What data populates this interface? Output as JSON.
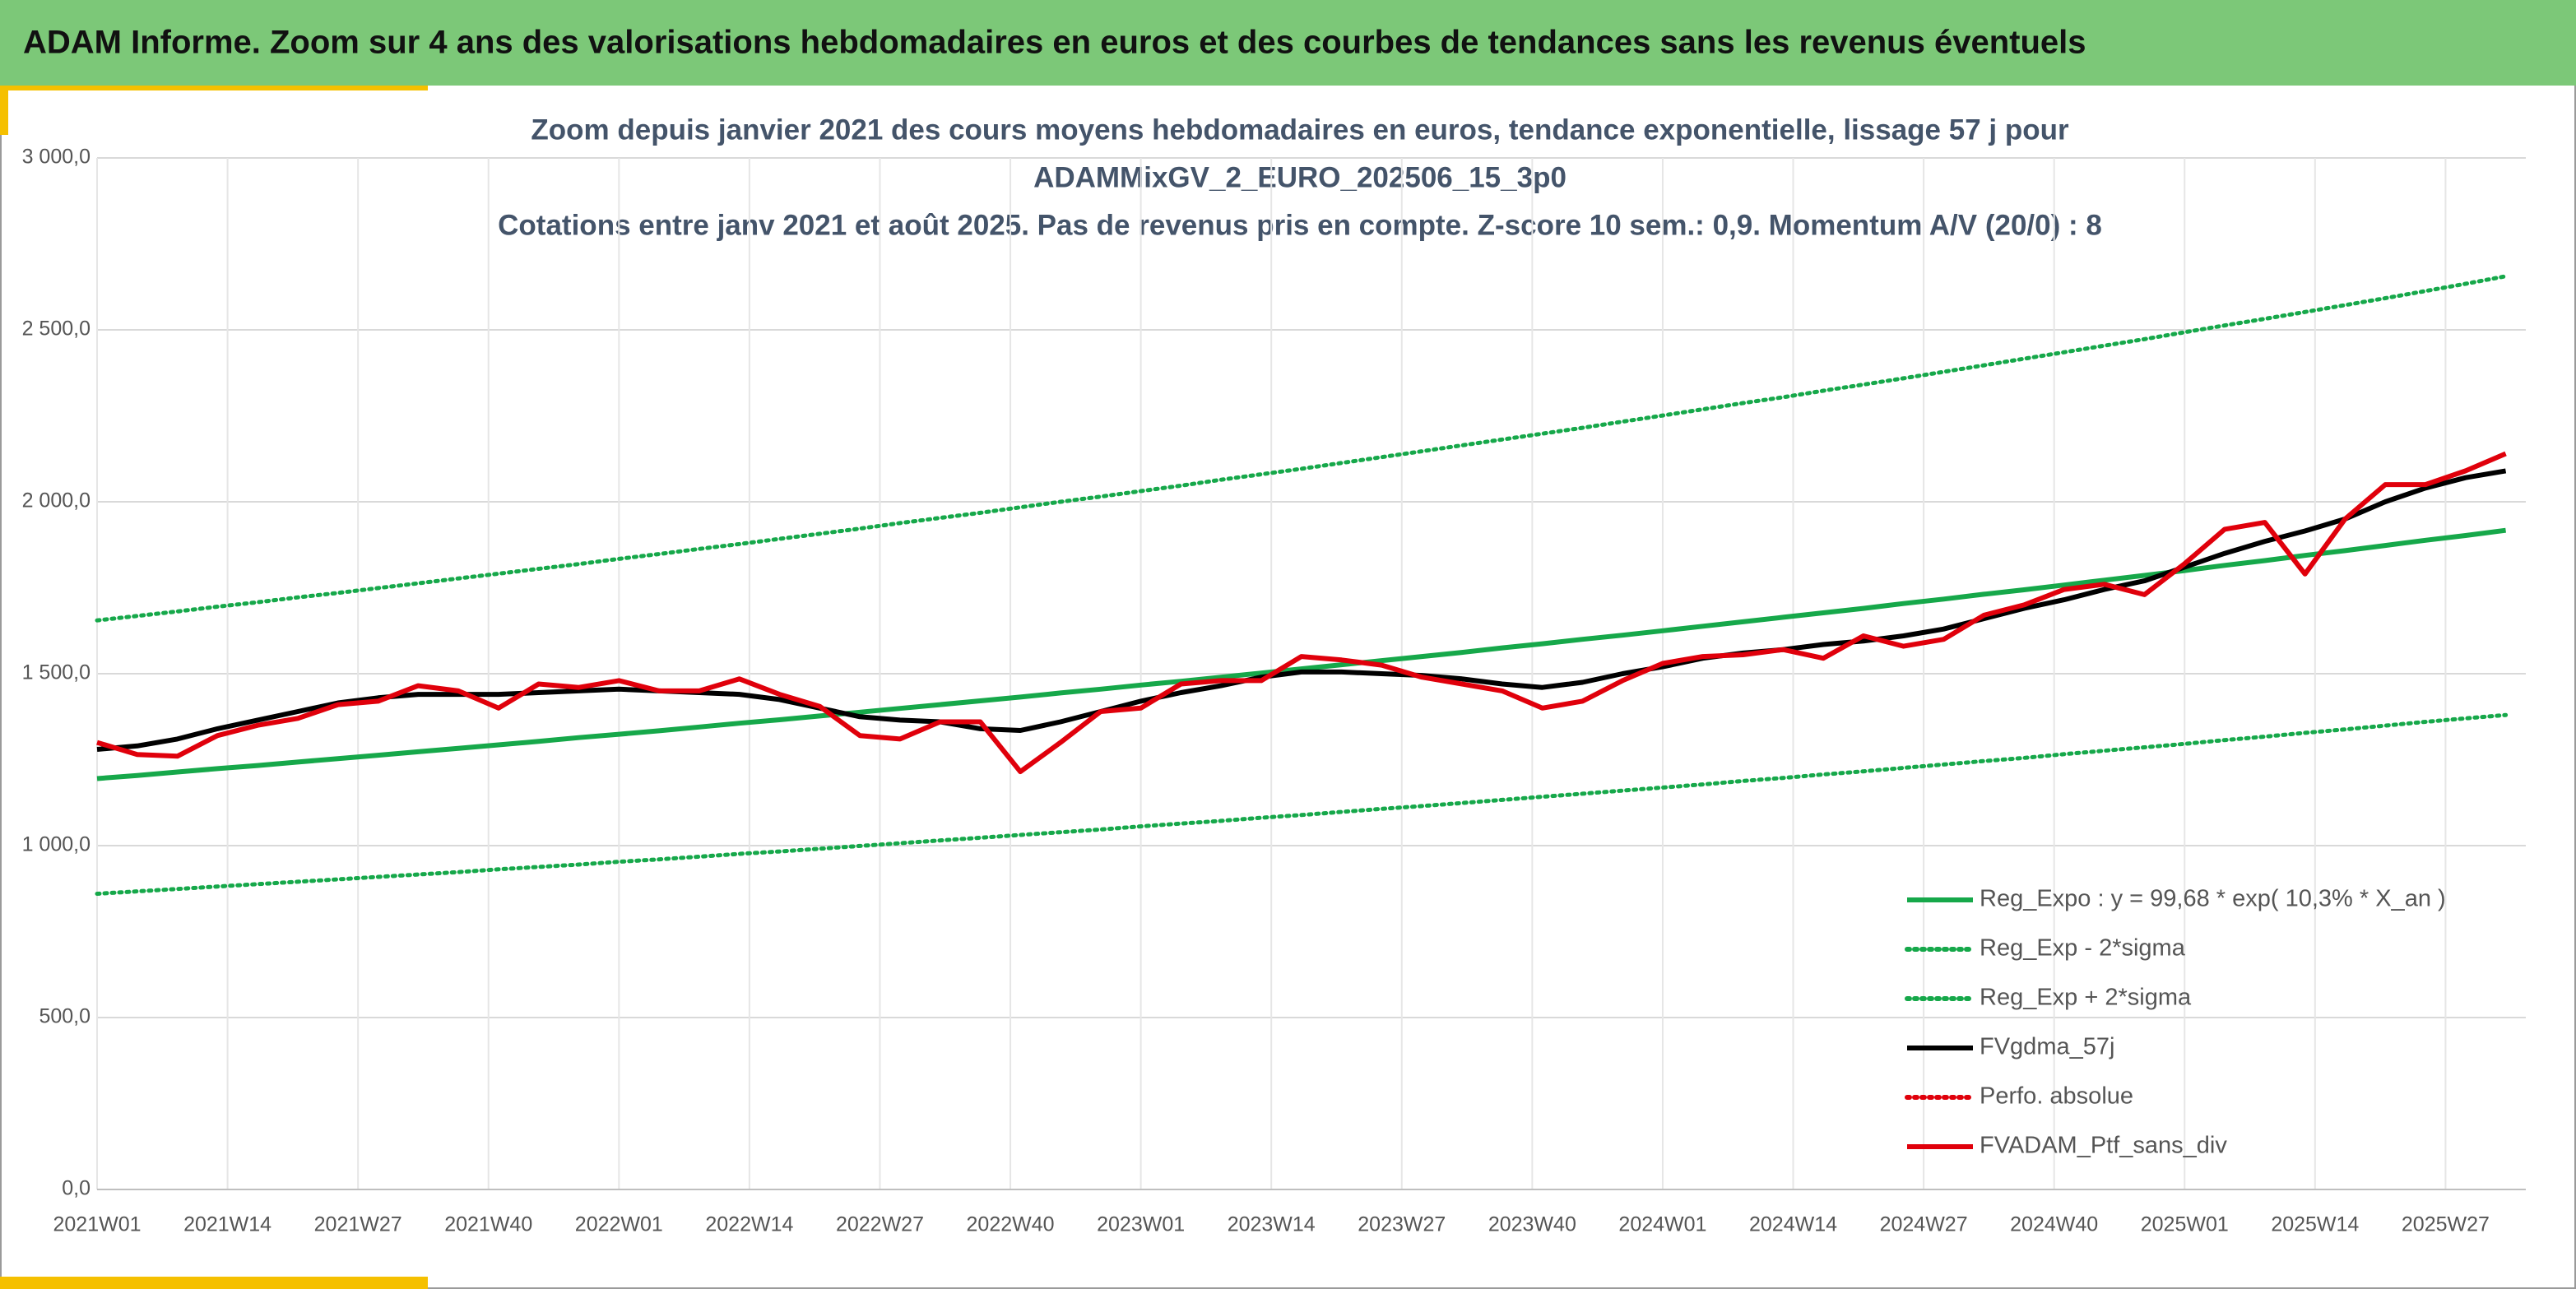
{
  "header": {
    "title": "ADAM Informe. Zoom sur 4 ans des valorisations hebdomadaires en euros et des courbes de tendances sans les revenus éventuels"
  },
  "chart_data": {
    "type": "line",
    "title": [
      "Zoom depuis janvier 2021 des cours moyens hebdomadaires en euros, tendance exponentielle, lissage 57 j pour",
      "ADAMMixGV_2_EURO_202506_15_3p0",
      "Cotations entre janv 2021 et août 2025. Pas de revenus pris en compte. Z-score 10 sem.: 0,9. Momentum A/V (20/0) : 8"
    ],
    "xlim": [
      0,
      242
    ],
    "xticks": [
      {
        "value": 0,
        "label": "2021W01"
      },
      {
        "value": 13,
        "label": "2021W14"
      },
      {
        "value": 26,
        "label": "2021W27"
      },
      {
        "value": 39,
        "label": "2021W40"
      },
      {
        "value": 52,
        "label": "2022W01"
      },
      {
        "value": 65,
        "label": "2022W14"
      },
      {
        "value": 78,
        "label": "2022W27"
      },
      {
        "value": 91,
        "label": "2022W40"
      },
      {
        "value": 104,
        "label": "2023W01"
      },
      {
        "value": 117,
        "label": "2023W14"
      },
      {
        "value": 130,
        "label": "2023W27"
      },
      {
        "value": 143,
        "label": "2023W40"
      },
      {
        "value": 156,
        "label": "2024W01"
      },
      {
        "value": 169,
        "label": "2024W14"
      },
      {
        "value": 182,
        "label": "2024W27"
      },
      {
        "value": 195,
        "label": "2024W40"
      },
      {
        "value": 208,
        "label": "2025W01"
      },
      {
        "value": 221,
        "label": "2025W14"
      },
      {
        "value": 234,
        "label": "2025W27"
      }
    ],
    "ylim": [
      0,
      3000
    ],
    "yticks": [
      {
        "value": 0,
        "label": "0,0"
      },
      {
        "value": 500,
        "label": "500,0"
      },
      {
        "value": 1000,
        "label": "1 000,0"
      },
      {
        "value": 1500,
        "label": "1 500,0"
      },
      {
        "value": 2000,
        "label": "2 000,0"
      },
      {
        "value": 2500,
        "label": "2 500,0"
      },
      {
        "value": 3000,
        "label": "3 000,0"
      }
    ],
    "grid": true,
    "legend": "lower right",
    "x": [
      0,
      4,
      8,
      12,
      16,
      20,
      24,
      28,
      32,
      36,
      40,
      44,
      48,
      52,
      56,
      60,
      64,
      68,
      72,
      76,
      80,
      84,
      88,
      92,
      96,
      100,
      104,
      108,
      112,
      116,
      120,
      124,
      128,
      132,
      136,
      140,
      144,
      148,
      152,
      156,
      160,
      164,
      168,
      172,
      176,
      180,
      184,
      188,
      192,
      196,
      200,
      204,
      208,
      212,
      216,
      220,
      224,
      228,
      232,
      236,
      240
    ],
    "series": [
      {
        "name": "Reg_Expo : y = 99,68 * exp( 10,3% *  X_an )",
        "color": "#16a84a",
        "line_style": "solid",
        "values": [
          1195,
          1204,
          1214,
          1224,
          1233,
          1243,
          1253,
          1263,
          1273,
          1283,
          1293,
          1303,
          1314,
          1324,
          1334,
          1345,
          1356,
          1366,
          1377,
          1388,
          1399,
          1410,
          1421,
          1432,
          1444,
          1455,
          1467,
          1478,
          1490,
          1502,
          1514,
          1526,
          1538,
          1550,
          1562,
          1575,
          1587,
          1600,
          1612,
          1625,
          1638,
          1651,
          1664,
          1677,
          1690,
          1704,
          1717,
          1731,
          1744,
          1758,
          1772,
          1786,
          1800,
          1815,
          1829,
          1844,
          1858,
          1873,
          1888,
          1902,
          1917
        ]
      },
      {
        "name": "Reg_Exp - 2*sigma",
        "color": "#16a84a",
        "line_style": "dotted",
        "values": [
          860,
          867,
          874,
          881,
          888,
          895,
          902,
          909,
          916,
          923,
          931,
          938,
          945,
          953,
          960,
          968,
          976,
          983,
          991,
          999,
          1007,
          1015,
          1023,
          1031,
          1039,
          1047,
          1056,
          1064,
          1072,
          1081,
          1089,
          1098,
          1107,
          1115,
          1124,
          1133,
          1142,
          1151,
          1160,
          1169,
          1178,
          1188,
          1197,
          1207,
          1216,
          1226,
          1236,
          1246,
          1255,
          1266,
          1276,
          1286,
          1296,
          1307,
          1317,
          1328,
          1338,
          1349,
          1360,
          1370,
          1380
        ]
      },
      {
        "name": "Reg_Exp + 2*sigma",
        "color": "#16a84a",
        "line_style": "dotted",
        "values": [
          1655,
          1668,
          1681,
          1695,
          1708,
          1722,
          1735,
          1749,
          1763,
          1777,
          1791,
          1805,
          1819,
          1834,
          1848,
          1863,
          1877,
          1892,
          1907,
          1922,
          1938,
          1953,
          1968,
          1984,
          2000,
          2015,
          2031,
          2047,
          2064,
          2080,
          2096,
          2113,
          2130,
          2147,
          2164,
          2181,
          2198,
          2215,
          2233,
          2251,
          2269,
          2287,
          2304,
          2323,
          2341,
          2359,
          2378,
          2397,
          2416,
          2435,
          2454,
          2473,
          2493,
          2513,
          2532,
          2552,
          2572,
          2592,
          2613,
          2634,
          2656
        ]
      },
      {
        "name": "FVgdma_57j",
        "color": "#000000",
        "line_style": "solid",
        "values": [
          1280,
          1290,
          1310,
          1340,
          1365,
          1390,
          1415,
          1430,
          1440,
          1440,
          1440,
          1445,
          1450,
          1455,
          1450,
          1445,
          1440,
          1425,
          1400,
          1375,
          1365,
          1360,
          1340,
          1335,
          1360,
          1390,
          1420,
          1445,
          1465,
          1490,
          1505,
          1505,
          1500,
          1495,
          1485,
          1470,
          1460,
          1475,
          1500,
          1520,
          1545,
          1560,
          1570,
          1585,
          1595,
          1610,
          1630,
          1660,
          1690,
          1715,
          1745,
          1770,
          1810,
          1850,
          1885,
          1915,
          1950,
          2000,
          2040,
          2070,
          2090
        ]
      },
      {
        "name": "Perfo. absolue",
        "color": "#e0000b",
        "line_style": "dotted",
        "values": [
          null,
          null,
          null,
          null,
          null,
          null,
          null,
          null,
          null,
          null,
          null,
          null,
          null,
          null,
          null,
          null,
          null,
          null,
          null,
          null,
          null,
          null,
          null,
          null,
          null,
          null,
          null,
          null,
          null,
          null,
          null,
          null,
          null,
          null,
          null,
          null,
          null,
          null,
          null,
          null,
          null,
          null,
          null,
          null,
          null,
          null,
          null,
          null,
          null,
          null,
          null,
          null,
          null,
          null,
          null,
          null,
          null,
          null,
          null,
          null,
          null
        ]
      },
      {
        "name": "FVADAM_Ptf_sans_div",
        "color": "#e0000b",
        "line_style": "solid",
        "values": [
          1300,
          1265,
          1260,
          1320,
          1350,
          1370,
          1410,
          1420,
          1465,
          1450,
          1400,
          1470,
          1460,
          1480,
          1450,
          1450,
          1485,
          1440,
          1405,
          1320,
          1310,
          1360,
          1360,
          1215,
          1300,
          1390,
          1400,
          1470,
          1480,
          1480,
          1550,
          1540,
          1525,
          1490,
          1470,
          1450,
          1400,
          1420,
          1480,
          1530,
          1550,
          1555,
          1570,
          1545,
          1610,
          1580,
          1600,
          1670,
          1700,
          1745,
          1760,
          1730,
          1820,
          1920,
          1940,
          1790,
          1950,
          2050,
          2050,
          2090,
          2140
        ]
      }
    ]
  }
}
